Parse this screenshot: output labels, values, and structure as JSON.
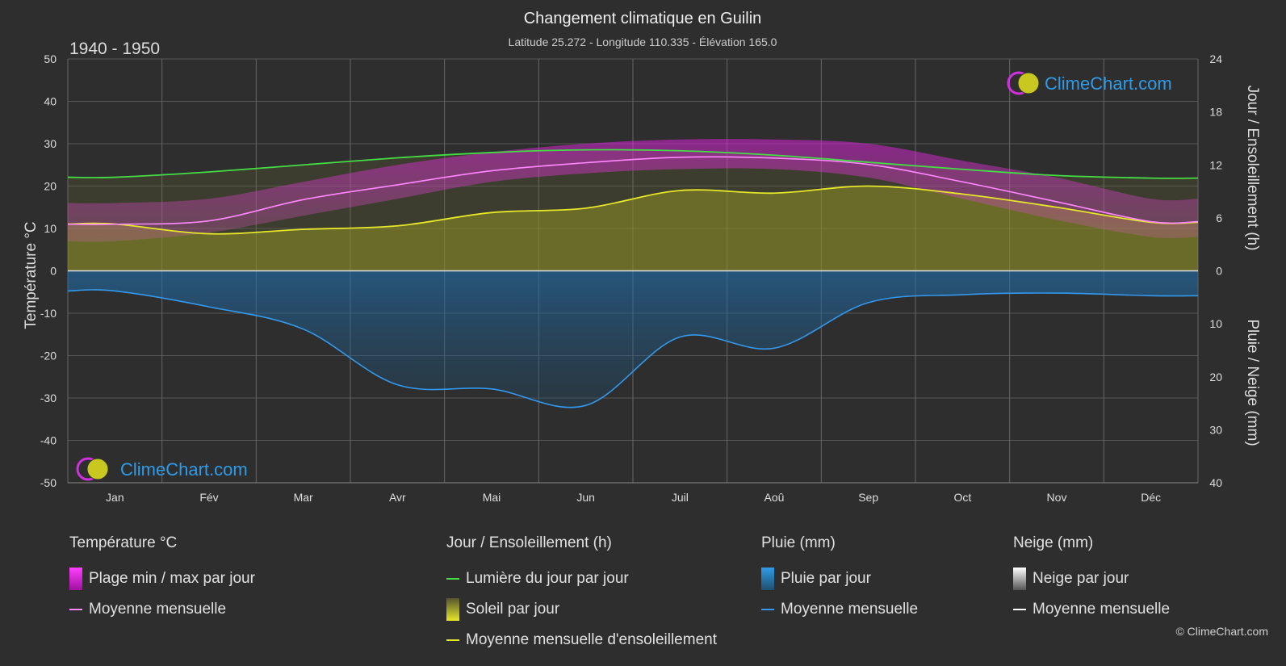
{
  "header": {
    "title": "Changement climatique en Guilin",
    "subtitle": "Latitude 25.272 - Longitude 110.335 - Élévation 165.0",
    "period": "1940 - 1950"
  },
  "brand": {
    "name": "ClimeChart.com",
    "copyright": "© ClimeChart.com"
  },
  "colors": {
    "background": "#2e2e2e",
    "daylight": "#44dd44",
    "sunshine_mean": "#e6e62a",
    "sunshine_fill": "#a0a020",
    "temp_mean": "#ff88ff",
    "temp_range": "#e020e0",
    "rain_mean": "#3399ee",
    "rain_fill": "#1f5f8f",
    "snow": "#ffffff",
    "brand_blue": "#2f9be8"
  },
  "chart_data": {
    "type": "line",
    "title": "Changement climatique en Guilin",
    "categories": [
      "Jan",
      "Fév",
      "Mar",
      "Avr",
      "Mai",
      "Jun",
      "Juil",
      "Aoû",
      "Sep",
      "Oct",
      "Nov",
      "Déc"
    ],
    "axes": {
      "left": {
        "label": "Température °C",
        "range": [
          -50,
          50
        ],
        "ticks": [
          50,
          40,
          30,
          20,
          10,
          0,
          -10,
          -20,
          -30,
          -40,
          -50
        ]
      },
      "right_top": {
        "label": "Jour / Ensoleillement (h)",
        "range": [
          0,
          24
        ],
        "ticks": [
          24,
          18,
          12,
          6,
          0
        ]
      },
      "right_bottom": {
        "label": "Pluie / Neige (mm)",
        "range": [
          0,
          40
        ],
        "ticks": [
          0,
          10,
          20,
          30,
          40
        ]
      }
    },
    "grid": true,
    "series": [
      {
        "name": "Lumière du jour par jour",
        "unit": "h",
        "values": [
          10.6,
          11.2,
          12.0,
          12.8,
          13.4,
          13.7,
          13.6,
          13.1,
          12.3,
          11.5,
          10.8,
          10.5
        ]
      },
      {
        "name": "Moyenne mensuelle d'ensoleillement",
        "unit": "h",
        "values": [
          5.3,
          4.2,
          4.7,
          5.1,
          6.6,
          7.1,
          9.1,
          8.8,
          9.6,
          8.7,
          7.2,
          5.5
        ]
      },
      {
        "name": "Température moyenne mensuelle",
        "unit": "°C",
        "values": [
          11.0,
          11.8,
          16.8,
          20.3,
          23.6,
          25.5,
          26.8,
          26.6,
          25.1,
          21.0,
          16.3,
          11.6
        ]
      },
      {
        "name": "Plage min / max par jour (min)",
        "unit": "°C",
        "values": [
          7,
          9,
          13,
          17,
          21,
          23,
          24,
          24,
          22,
          17,
          12,
          8
        ]
      },
      {
        "name": "Plage min / max par jour (max)",
        "unit": "°C",
        "values": [
          16,
          17,
          21,
          25,
          28,
          30,
          31,
          31,
          30,
          26,
          22,
          17
        ]
      },
      {
        "name": "Pluie moyenne mensuelle",
        "unit": "mm",
        "values": [
          3.8,
          6.8,
          11.0,
          21.5,
          22.3,
          25.4,
          12.5,
          14.6,
          6.0,
          4.5,
          4.2,
          4.7
        ]
      },
      {
        "name": "Neige moyenne mensuelle",
        "unit": "mm",
        "values": [
          0,
          0,
          0,
          0,
          0,
          0,
          0,
          0,
          0,
          0,
          0,
          0
        ]
      }
    ]
  },
  "legend": {
    "temperature": {
      "title": "Température °C",
      "items": [
        "Plage min / max par jour",
        "Moyenne mensuelle"
      ]
    },
    "sun": {
      "title": "Jour / Ensoleillement (h)",
      "items": [
        "Lumière du jour par jour",
        "Soleil par jour",
        "Moyenne mensuelle d'ensoleillement"
      ]
    },
    "rain": {
      "title": "Pluie (mm)",
      "items": [
        "Pluie par jour",
        "Moyenne mensuelle"
      ]
    },
    "snow": {
      "title": "Neige (mm)",
      "items": [
        "Neige par jour",
        "Moyenne mensuelle"
      ]
    }
  }
}
